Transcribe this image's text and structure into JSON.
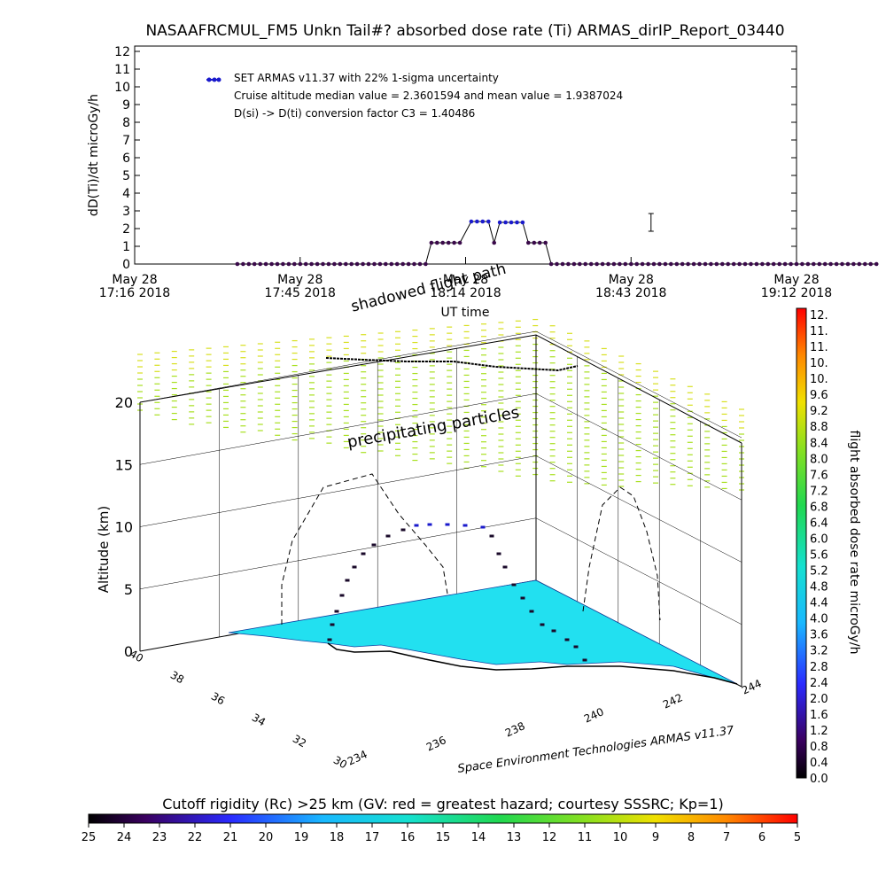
{
  "title": "NASAAFRCMUL_FM5 Unkn Tail#? absorbed dose rate (Ti) ARMAS_dirIP_Report_03440",
  "colors": {
    "dose_series": "#1a1acc",
    "dose_series_low": "#3a0a4a",
    "surface": "#22e0f0",
    "particles": "#a8e020"
  },
  "chart_data": [
    {
      "type": "line",
      "title": "NASAAFRCMUL_FM5 Unkn Tail#? absorbed dose rate (Ti) ARMAS_dirIP_Report_03440",
      "xlabel": "UT time",
      "ylabel": "dD(Ti)/dt microGy/h",
      "ylim": [
        0,
        12
      ],
      "yticks": [
        "0",
        "1",
        "2",
        "3",
        "4",
        "5",
        "6",
        "7",
        "8",
        "9",
        "10",
        "11",
        "12"
      ],
      "xticks": [
        {
          "date": "May 28",
          "time": "17:16 2018"
        },
        {
          "date": "May 28",
          "time": "17:45 2018"
        },
        {
          "date": "May 28",
          "time": "18:14 2018"
        },
        {
          "date": "May 28",
          "time": "18:43 2018"
        },
        {
          "date": "May 28",
          "time": "19:12 2018"
        }
      ],
      "xrange_minutes_after_1716": [
        0,
        116
      ],
      "legend": {
        "entry": "SET ARMAS v11.37 with 22% 1-sigma uncertainty",
        "line2": "Cruise altitude median value = 2.3601594 and mean value = 1.9387024",
        "line3": "D(si) -> D(ti) conversion factor C3 = 1.40486",
        "placement": "top-left"
      },
      "error_bar": {
        "x": 90.5,
        "y": 2.35,
        "low": 1.85,
        "high": 2.85
      },
      "series": [
        {
          "name": "SET ARMAS v11.37 with 22% 1-sigma uncertainty",
          "points": [
            [
              18,
              0
            ],
            [
              19,
              0
            ],
            [
              20,
              0
            ],
            [
              21,
              0
            ],
            [
              22,
              0
            ],
            [
              23,
              0
            ],
            [
              24,
              0
            ],
            [
              25,
              0
            ],
            [
              26,
              0
            ],
            [
              27,
              0
            ],
            [
              28,
              0
            ],
            [
              29,
              0
            ],
            [
              30,
              0
            ],
            [
              31,
              0
            ],
            [
              32,
              0
            ],
            [
              33,
              0
            ],
            [
              34,
              0
            ],
            [
              35,
              0
            ],
            [
              36,
              0
            ],
            [
              37,
              0
            ],
            [
              38,
              0
            ],
            [
              39,
              0
            ],
            [
              40,
              0
            ],
            [
              41,
              0
            ],
            [
              42,
              0
            ],
            [
              43,
              0
            ],
            [
              44,
              0
            ],
            [
              45,
              0
            ],
            [
              46,
              0
            ],
            [
              47,
              0
            ],
            [
              48,
              0
            ],
            [
              49,
              0
            ],
            [
              50,
              0
            ],
            [
              51,
              0
            ],
            [
              52,
              1.2
            ],
            [
              53,
              1.2
            ],
            [
              54,
              1.2
            ],
            [
              55,
              1.2
            ],
            [
              56,
              1.2
            ],
            [
              57,
              1.2
            ],
            [
              59,
              2.4
            ],
            [
              60,
              2.4
            ],
            [
              61,
              2.4
            ],
            [
              62,
              2.4
            ],
            [
              63,
              1.2
            ],
            [
              64,
              2.35
            ],
            [
              65,
              2.35
            ],
            [
              66,
              2.35
            ],
            [
              67,
              2.35
            ],
            [
              68,
              2.35
            ],
            [
              69,
              1.2
            ],
            [
              70,
              1.2
            ],
            [
              71,
              1.2
            ],
            [
              72,
              1.2
            ],
            [
              73,
              0
            ],
            [
              74,
              0
            ],
            [
              75,
              0
            ],
            [
              76,
              0
            ],
            [
              77,
              0
            ],
            [
              78,
              0
            ],
            [
              79,
              0
            ],
            [
              80,
              0
            ],
            [
              81,
              0
            ],
            [
              82,
              0
            ],
            [
              83,
              0
            ],
            [
              84,
              0
            ],
            [
              85,
              0
            ],
            [
              86,
              0
            ],
            [
              87,
              0
            ],
            [
              88,
              0
            ],
            [
              89,
              0
            ],
            [
              90,
              0
            ],
            [
              91,
              0
            ],
            [
              92,
              0
            ],
            [
              93,
              0
            ],
            [
              94,
              0
            ],
            [
              95,
              0
            ],
            [
              96,
              0
            ],
            [
              97,
              0
            ],
            [
              98,
              0
            ],
            [
              99,
              0
            ],
            [
              100,
              0
            ],
            [
              101,
              0
            ],
            [
              102,
              0
            ],
            [
              103,
              0
            ],
            [
              104,
              0
            ],
            [
              105,
              0
            ],
            [
              106,
              0
            ],
            [
              107,
              0
            ],
            [
              108,
              0
            ],
            [
              109,
              0
            ],
            [
              110,
              0
            ],
            [
              111,
              0
            ],
            [
              112,
              0
            ],
            [
              113,
              0
            ],
            [
              114,
              0
            ],
            [
              115,
              0
            ],
            [
              116,
              0
            ],
            [
              117,
              0
            ],
            [
              118,
              0
            ],
            [
              119,
              0
            ],
            [
              120,
              0
            ],
            [
              121,
              0
            ],
            [
              122,
              0
            ],
            [
              123,
              0
            ],
            [
              124,
              0
            ],
            [
              125,
              0
            ],
            [
              126,
              0
            ],
            [
              127,
              0
            ],
            [
              128,
              0
            ],
            [
              129,
              0
            ],
            [
              130,
              0
            ]
          ]
        }
      ]
    },
    {
      "type": "scatter",
      "subtype": "3d",
      "zlabel": "Altitude (km)",
      "zticks": [
        "0",
        "5",
        "10",
        "15",
        "20"
      ],
      "zlim": [
        0,
        20
      ],
      "lat_ticks": [
        "40",
        "38",
        "36",
        "34",
        "32",
        "30"
      ],
      "lon_ticks": [
        "234",
        "236",
        "238",
        "240",
        "242",
        "244"
      ],
      "annotations": [
        "precipitating particles",
        "shadowed flight path"
      ],
      "footer": "Space Environment Technologies ARMAS v11.37"
    },
    {
      "type": "heatmap",
      "colorbar": "vertical",
      "ylabel": "flight absorbed dose rate microGy/h",
      "ticks": [
        "12.",
        "11.",
        "11.",
        "10.",
        "10.",
        "9.6",
        "9.2",
        "8.8",
        "8.4",
        "8.0",
        "7.6",
        "7.2",
        "6.8",
        "6.4",
        "6.0",
        "5.6",
        "5.2",
        "4.8",
        "4.4",
        "4.0",
        "3.6",
        "3.2",
        "2.8",
        "2.4",
        "2.0",
        "1.6",
        "1.2",
        "0.8",
        "0.4",
        "0.0"
      ],
      "range": [
        0,
        12
      ]
    },
    {
      "type": "heatmap",
      "colorbar": "horizontal",
      "title": "Cutoff rigidity (Rc) >25 km (GV: red = greatest hazard; courtesy SSSRC; Kp=1)",
      "ticks": [
        "25",
        "24",
        "23",
        "22",
        "21",
        "20",
        "19",
        "18",
        "17",
        "16",
        "15",
        "14",
        "13",
        "12",
        "11",
        "10",
        "9",
        "8",
        "7",
        "6",
        "5"
      ],
      "range": [
        25,
        5
      ]
    }
  ]
}
